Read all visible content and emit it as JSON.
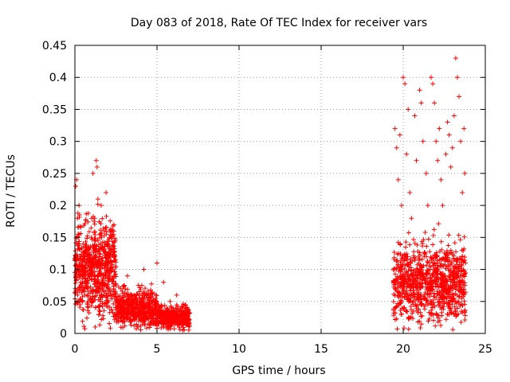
{
  "chart_data": {
    "type": "scatter",
    "title": "Day 083 of 2018, Rate Of TEC Index for receiver vars",
    "xlabel": "GPS time / hours",
    "ylabel": "ROTI / TECUs",
    "xlim": [
      0,
      25
    ],
    "ylim": [
      0,
      0.45
    ],
    "xticks": [
      0,
      5,
      10,
      15,
      20,
      25
    ],
    "xtick_labels": [
      "0",
      "5",
      "10",
      "15",
      "20",
      "25"
    ],
    "yticks": [
      0,
      0.05,
      0.1,
      0.15,
      0.2,
      0.25,
      0.3,
      0.35,
      0.4,
      0.45
    ],
    "ytick_labels": [
      "0",
      "0.05",
      "0.1",
      "0.15",
      "0.2",
      "0.25",
      "0.3",
      "0.35",
      "0.4",
      "0.45"
    ],
    "grid": true,
    "marker": "+",
    "color": "#ff0000",
    "series": [
      {
        "name": "ROTI",
        "points": [
          [
            0.05,
            0.23
          ],
          [
            0.1,
            0.24
          ],
          [
            0.15,
            0.18
          ],
          [
            0.2,
            0.15
          ],
          [
            0.25,
            0.2
          ],
          [
            0.3,
            0.12
          ],
          [
            0.35,
            0.08
          ],
          [
            0.4,
            0.1
          ],
          [
            0.5,
            0.14
          ],
          [
            0.6,
            0.06
          ],
          [
            0.7,
            0.11
          ],
          [
            0.8,
            0.05
          ],
          [
            0.9,
            0.09
          ],
          [
            1.0,
            0.15
          ],
          [
            1.1,
            0.25
          ],
          [
            1.2,
            0.18
          ],
          [
            1.3,
            0.27
          ],
          [
            1.35,
            0.26
          ],
          [
            1.4,
            0.21
          ],
          [
            1.5,
            0.12
          ],
          [
            1.6,
            0.2
          ],
          [
            1.7,
            0.08
          ],
          [
            1.8,
            0.16
          ],
          [
            1.9,
            0.22
          ],
          [
            2.0,
            0.14
          ],
          [
            2.1,
            0.1
          ],
          [
            2.2,
            0.13
          ],
          [
            2.3,
            0.06
          ],
          [
            2.4,
            0.09
          ],
          [
            2.5,
            0.05
          ],
          [
            2.6,
            0.04
          ],
          [
            2.8,
            0.07
          ],
          [
            3.0,
            0.05
          ],
          [
            3.2,
            0.09
          ],
          [
            3.4,
            0.04
          ],
          [
            3.6,
            0.06
          ],
          [
            3.8,
            0.03
          ],
          [
            4.0,
            0.05
          ],
          [
            4.2,
            0.1
          ],
          [
            4.4,
            0.04
          ],
          [
            4.6,
            0.06
          ],
          [
            4.8,
            0.03
          ],
          [
            5.0,
            0.11
          ],
          [
            5.2,
            0.04
          ],
          [
            5.4,
            0.08
          ],
          [
            5.6,
            0.02
          ],
          [
            5.8,
            0.05
          ],
          [
            6.0,
            0.03
          ],
          [
            6.2,
            0.06
          ],
          [
            6.4,
            0.02
          ],
          [
            6.6,
            0.03
          ],
          [
            6.8,
            0.02
          ],
          [
            6.9,
            0.03
          ],
          [
            19.5,
            0.32
          ],
          [
            19.6,
            0.29
          ],
          [
            19.7,
            0.24
          ],
          [
            19.8,
            0.31
          ],
          [
            19.9,
            0.2
          ],
          [
            20.0,
            0.4
          ],
          [
            20.1,
            0.39
          ],
          [
            20.2,
            0.28
          ],
          [
            20.3,
            0.35
          ],
          [
            20.4,
            0.22
          ],
          [
            20.5,
            0.18
          ],
          [
            20.7,
            0.34
          ],
          [
            20.8,
            0.27
          ],
          [
            21.0,
            0.38
          ],
          [
            21.1,
            0.36
          ],
          [
            21.2,
            0.3
          ],
          [
            21.4,
            0.25
          ],
          [
            21.5,
            0.2
          ],
          [
            21.7,
            0.4
          ],
          [
            21.8,
            0.39
          ],
          [
            21.9,
            0.36
          ],
          [
            22.0,
            0.3
          ],
          [
            22.1,
            0.27
          ],
          [
            22.2,
            0.32
          ],
          [
            22.3,
            0.24
          ],
          [
            22.4,
            0.2
          ],
          [
            22.6,
            0.28
          ],
          [
            22.7,
            0.33
          ],
          [
            22.8,
            0.31
          ],
          [
            22.9,
            0.26
          ],
          [
            23.0,
            0.29
          ],
          [
            23.1,
            0.34
          ],
          [
            23.2,
            0.43
          ],
          [
            23.3,
            0.4
          ],
          [
            23.4,
            0.37
          ],
          [
            23.5,
            0.3
          ],
          [
            23.6,
            0.22
          ],
          [
            23.7,
            0.32
          ],
          [
            23.75,
            0.25
          ]
        ],
        "clusters": [
          {
            "x_start": 0.0,
            "x_end": 2.5,
            "y_center": 0.1,
            "y_spread": 0.06,
            "count": 700
          },
          {
            "x_start": 2.5,
            "x_end": 5.0,
            "y_center": 0.04,
            "y_spread": 0.025,
            "count": 500
          },
          {
            "x_start": 5.0,
            "x_end": 7.0,
            "y_center": 0.025,
            "y_spread": 0.015,
            "count": 400
          },
          {
            "x_start": 19.4,
            "x_end": 23.8,
            "y_center": 0.08,
            "y_spread": 0.05,
            "count": 900
          }
        ]
      }
    ]
  }
}
